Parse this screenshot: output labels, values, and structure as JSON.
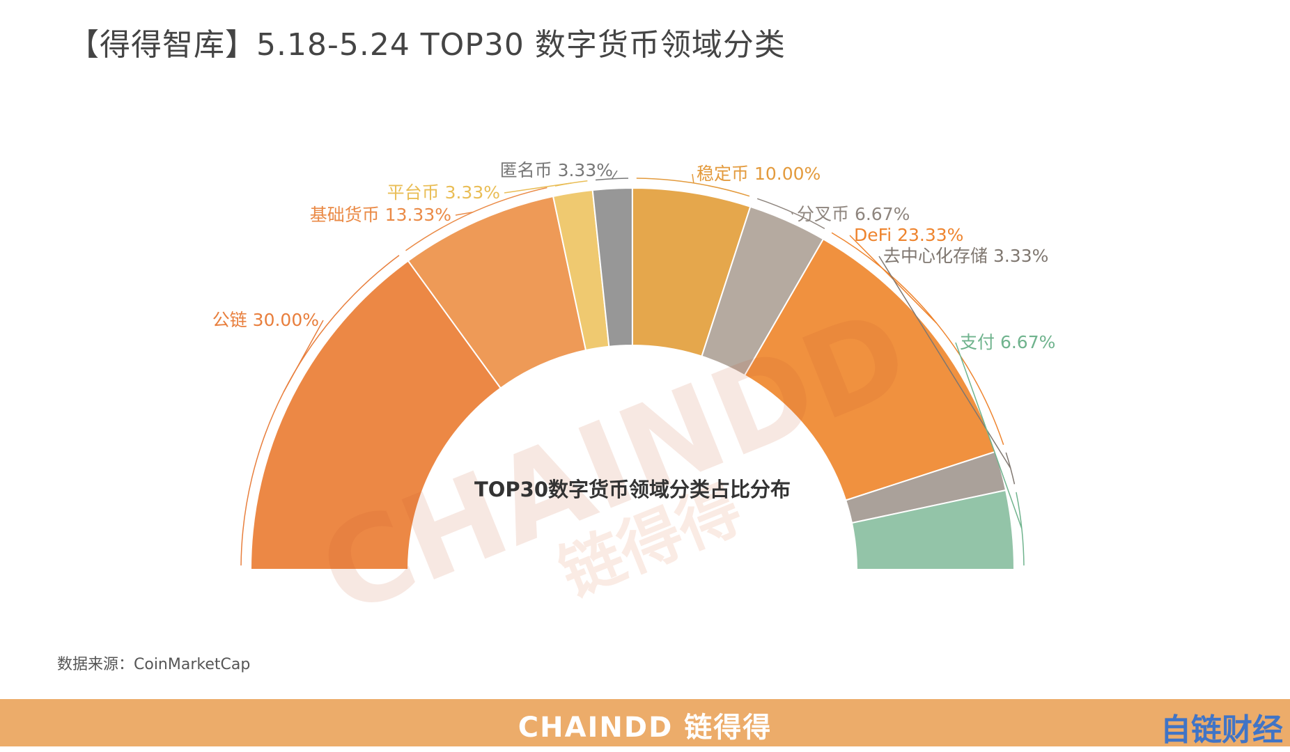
{
  "title": "【得得智库】5.18-5.24  TOP30 数字货币领域分类",
  "source": "数据来源：CoinMarketCap",
  "footer": {
    "brand": "CHAINDD 链得得",
    "corner_logo": "自链财经"
  },
  "watermark": {
    "latin": "CHAINDD",
    "cn": "链得得"
  },
  "colors": {
    "public_chain": "#ec8845",
    "base_currency": "#ee9a57",
    "platform": "#efc970",
    "anonymous": "#979797",
    "stablecoin": "#e5a74c",
    "fork": "#b5aaa0",
    "defi": "#f0913f",
    "storage": "#aaa19a",
    "payment": "#93c4a8",
    "footer": "#ecac6a"
  },
  "chart_data": {
    "type": "pie",
    "variant": "semi-donut",
    "center_label": "TOP30数字货币领域分类占比分布",
    "slices": [
      {
        "label": "公链 30.00%",
        "value": 30.0,
        "color": "#ec8845",
        "label_color": "#e87e3c"
      },
      {
        "label": "基础货币 13.33%",
        "value": 13.33,
        "color": "#ee9a57",
        "label_color": "#ea8a46"
      },
      {
        "label": "平台币 3.33%",
        "value": 3.33,
        "color": "#efc970",
        "label_color": "#e9bd55"
      },
      {
        "label": "匿名币 3.33%",
        "value": 3.33,
        "color": "#979797",
        "label_color": "#777777"
      },
      {
        "label": "稳定币 10.00%",
        "value": 10.0,
        "color": "#e5a74c",
        "label_color": "#e39a3c"
      },
      {
        "label": "分叉币 6.67%",
        "value": 6.67,
        "color": "#b5aaa0",
        "label_color": "#8e857e"
      },
      {
        "label": "DeFi 23.33%",
        "value": 23.33,
        "color": "#f0913f",
        "label_color": "#ee842e"
      },
      {
        "label": "去中心化存储 3.33%",
        "value": 3.33,
        "color": "#aaa19a",
        "label_color": "#7f7770"
      },
      {
        "label": "支付 6.67%",
        "value": 6.67,
        "color": "#93c4a8",
        "label_color": "#6fb38d"
      }
    ]
  }
}
